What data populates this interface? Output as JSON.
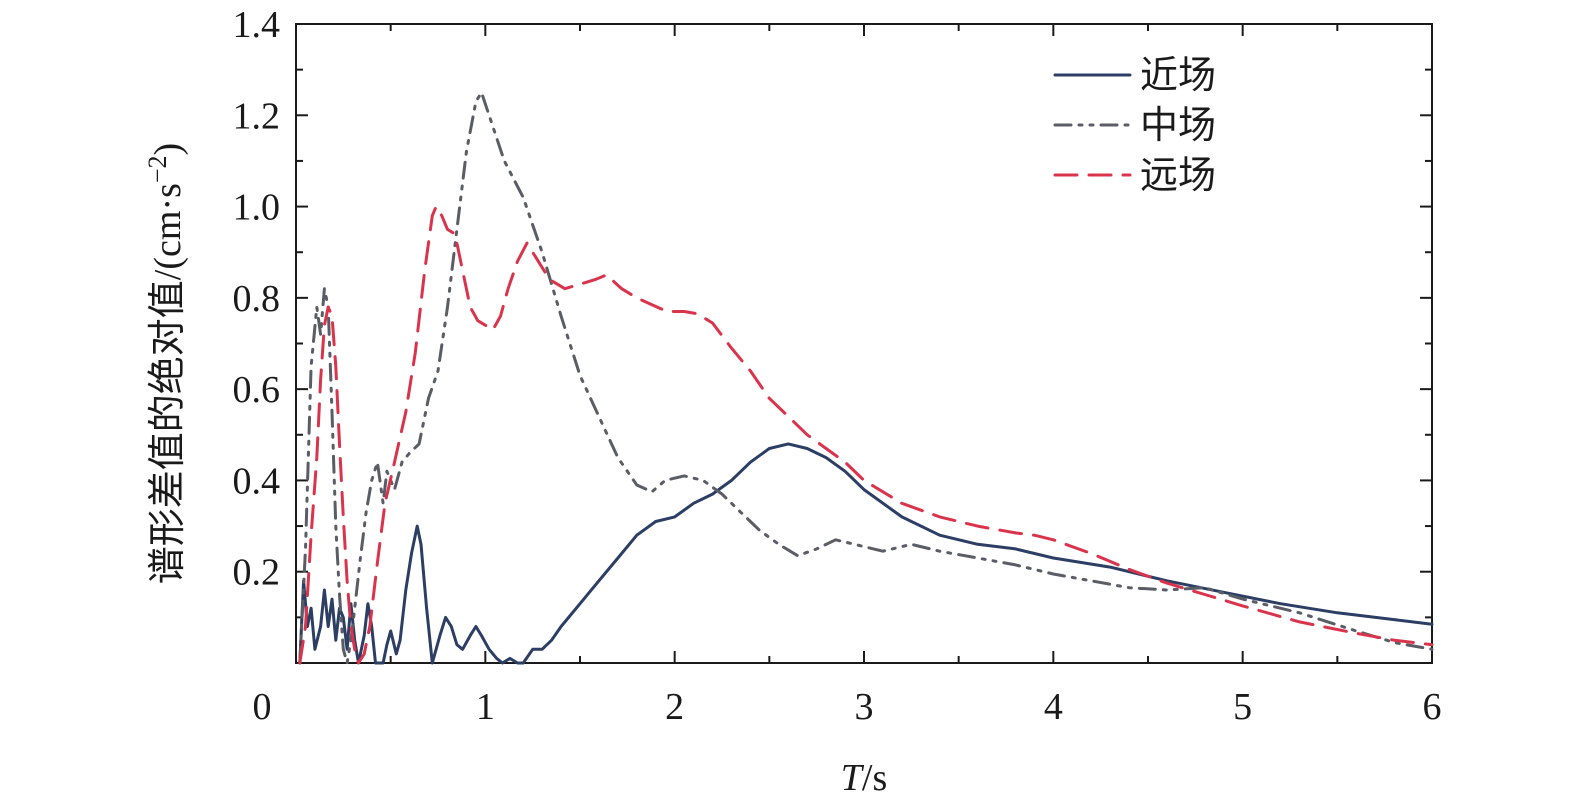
{
  "chart_data": {
    "type": "line",
    "xlabel_italic": "T",
    "xlabel_unit": "/s",
    "ylabel": "谱形差值的绝对值/(cm·s",
    "ylabel_exp": "−2",
    "ylabel_close": ")",
    "xlim": [
      0,
      6
    ],
    "ylim": [
      0,
      1.4
    ],
    "x_ticks": [
      0,
      1,
      2,
      3,
      4,
      5,
      6
    ],
    "x_tick_labels": [
      "0",
      "1",
      "2",
      "3",
      "4",
      "5",
      "6"
    ],
    "y_ticks": [
      0.2,
      0.4,
      0.6,
      0.8,
      1.0,
      1.2,
      1.4
    ],
    "y_tick_labels": [
      "0.2",
      "0.4",
      "0.6",
      "0.8",
      "1.0",
      "1.2",
      "1.4"
    ],
    "legend_position": "top-right",
    "series": [
      {
        "name": "近场",
        "color": "#2c3e63",
        "dash": "solid",
        "points": [
          [
            0.02,
            0.0
          ],
          [
            0.04,
            0.18
          ],
          [
            0.06,
            0.08
          ],
          [
            0.08,
            0.12
          ],
          [
            0.1,
            0.03
          ],
          [
            0.13,
            0.08
          ],
          [
            0.15,
            0.16
          ],
          [
            0.17,
            0.08
          ],
          [
            0.19,
            0.14
          ],
          [
            0.21,
            0.05
          ],
          [
            0.23,
            0.12
          ],
          [
            0.25,
            0.1
          ],
          [
            0.27,
            0.03
          ],
          [
            0.29,
            0.13
          ],
          [
            0.31,
            0.05
          ],
          [
            0.33,
            0.0
          ],
          [
            0.36,
            0.06
          ],
          [
            0.38,
            0.13
          ],
          [
            0.4,
            0.08
          ],
          [
            0.42,
            0.0
          ],
          [
            0.46,
            0.0
          ],
          [
            0.48,
            0.04
          ],
          [
            0.5,
            0.07
          ],
          [
            0.53,
            0.02
          ],
          [
            0.55,
            0.05
          ],
          [
            0.58,
            0.16
          ],
          [
            0.61,
            0.24
          ],
          [
            0.64,
            0.3
          ],
          [
            0.66,
            0.26
          ],
          [
            0.69,
            0.12
          ],
          [
            0.72,
            0.0
          ],
          [
            0.76,
            0.06
          ],
          [
            0.79,
            0.1
          ],
          [
            0.82,
            0.08
          ],
          [
            0.85,
            0.04
          ],
          [
            0.88,
            0.03
          ],
          [
            0.92,
            0.06
          ],
          [
            0.95,
            0.08
          ],
          [
            0.98,
            0.06
          ],
          [
            1.02,
            0.03
          ],
          [
            1.06,
            0.01
          ],
          [
            1.09,
            0.0
          ],
          [
            1.13,
            0.01
          ],
          [
            1.17,
            0.0
          ],
          [
            1.2,
            0.0
          ],
          [
            1.25,
            0.03
          ],
          [
            1.3,
            0.03
          ],
          [
            1.35,
            0.05
          ],
          [
            1.4,
            0.08
          ],
          [
            1.5,
            0.13
          ],
          [
            1.6,
            0.18
          ],
          [
            1.7,
            0.23
          ],
          [
            1.8,
            0.28
          ],
          [
            1.9,
            0.31
          ],
          [
            2.0,
            0.32
          ],
          [
            2.1,
            0.35
          ],
          [
            2.2,
            0.37
          ],
          [
            2.3,
            0.4
          ],
          [
            2.4,
            0.44
          ],
          [
            2.5,
            0.47
          ],
          [
            2.6,
            0.48
          ],
          [
            2.7,
            0.47
          ],
          [
            2.8,
            0.45
          ],
          [
            2.9,
            0.42
          ],
          [
            3.0,
            0.38
          ],
          [
            3.2,
            0.32
          ],
          [
            3.4,
            0.28
          ],
          [
            3.6,
            0.26
          ],
          [
            3.8,
            0.25
          ],
          [
            4.0,
            0.23
          ],
          [
            4.3,
            0.21
          ],
          [
            4.6,
            0.18
          ],
          [
            4.9,
            0.155
          ],
          [
            5.2,
            0.13
          ],
          [
            5.5,
            0.11
          ],
          [
            5.8,
            0.095
          ],
          [
            6.0,
            0.085
          ]
        ]
      },
      {
        "name": "中场",
        "color": "#5a5d66",
        "dash": "dash-dot-dot",
        "points": [
          [
            0.02,
            0.0
          ],
          [
            0.05,
            0.25
          ],
          [
            0.08,
            0.65
          ],
          [
            0.11,
            0.78
          ],
          [
            0.13,
            0.72
          ],
          [
            0.15,
            0.82
          ],
          [
            0.17,
            0.78
          ],
          [
            0.19,
            0.55
          ],
          [
            0.21,
            0.3
          ],
          [
            0.23,
            0.15
          ],
          [
            0.25,
            0.03
          ],
          [
            0.27,
            0.0
          ],
          [
            0.29,
            0.05
          ],
          [
            0.31,
            0.12
          ],
          [
            0.34,
            0.23
          ],
          [
            0.37,
            0.33
          ],
          [
            0.4,
            0.4
          ],
          [
            0.43,
            0.44
          ],
          [
            0.46,
            0.35
          ],
          [
            0.48,
            0.42
          ],
          [
            0.52,
            0.38
          ],
          [
            0.56,
            0.44
          ],
          [
            0.6,
            0.46
          ],
          [
            0.65,
            0.48
          ],
          [
            0.7,
            0.58
          ],
          [
            0.75,
            0.64
          ],
          [
            0.8,
            0.78
          ],
          [
            0.85,
            0.95
          ],
          [
            0.9,
            1.12
          ],
          [
            0.95,
            1.23
          ],
          [
            0.98,
            1.25
          ],
          [
            1.02,
            1.2
          ],
          [
            1.1,
            1.1
          ],
          [
            1.2,
            1.02
          ],
          [
            1.3,
            0.9
          ],
          [
            1.4,
            0.76
          ],
          [
            1.5,
            0.63
          ],
          [
            1.6,
            0.54
          ],
          [
            1.7,
            0.45
          ],
          [
            1.8,
            0.39
          ],
          [
            1.88,
            0.375
          ],
          [
            1.95,
            0.4
          ],
          [
            2.05,
            0.41
          ],
          [
            2.15,
            0.4
          ],
          [
            2.25,
            0.37
          ],
          [
            2.35,
            0.33
          ],
          [
            2.45,
            0.29
          ],
          [
            2.55,
            0.26
          ],
          [
            2.65,
            0.235
          ],
          [
            2.75,
            0.25
          ],
          [
            2.85,
            0.27
          ],
          [
            2.95,
            0.26
          ],
          [
            3.1,
            0.245
          ],
          [
            3.25,
            0.26
          ],
          [
            3.4,
            0.245
          ],
          [
            3.6,
            0.23
          ],
          [
            3.8,
            0.215
          ],
          [
            4.0,
            0.195
          ],
          [
            4.2,
            0.18
          ],
          [
            4.4,
            0.165
          ],
          [
            4.6,
            0.16
          ],
          [
            4.8,
            0.165
          ],
          [
            5.0,
            0.14
          ],
          [
            5.3,
            0.11
          ],
          [
            5.6,
            0.07
          ],
          [
            5.8,
            0.045
          ],
          [
            6.0,
            0.03
          ]
        ]
      },
      {
        "name": "远场",
        "color": "#d9344c",
        "dash": "dash",
        "points": [
          [
            0.02,
            0.0
          ],
          [
            0.05,
            0.08
          ],
          [
            0.08,
            0.28
          ],
          [
            0.11,
            0.45
          ],
          [
            0.13,
            0.62
          ],
          [
            0.15,
            0.74
          ],
          [
            0.17,
            0.78
          ],
          [
            0.19,
            0.76
          ],
          [
            0.21,
            0.65
          ],
          [
            0.23,
            0.48
          ],
          [
            0.25,
            0.32
          ],
          [
            0.27,
            0.18
          ],
          [
            0.29,
            0.08
          ],
          [
            0.31,
            0.03
          ],
          [
            0.33,
            0.0
          ],
          [
            0.36,
            0.02
          ],
          [
            0.39,
            0.08
          ],
          [
            0.43,
            0.22
          ],
          [
            0.47,
            0.35
          ],
          [
            0.52,
            0.44
          ],
          [
            0.58,
            0.55
          ],
          [
            0.63,
            0.68
          ],
          [
            0.68,
            0.86
          ],
          [
            0.72,
            0.98
          ],
          [
            0.74,
            1.0
          ],
          [
            0.77,
            0.98
          ],
          [
            0.8,
            0.95
          ],
          [
            0.84,
            0.94
          ],
          [
            0.88,
            0.86
          ],
          [
            0.92,
            0.78
          ],
          [
            0.96,
            0.75
          ],
          [
            1.0,
            0.74
          ],
          [
            1.04,
            0.73
          ],
          [
            1.08,
            0.76
          ],
          [
            1.12,
            0.82
          ],
          [
            1.17,
            0.88
          ],
          [
            1.22,
            0.92
          ],
          [
            1.28,
            0.88
          ],
          [
            1.34,
            0.84
          ],
          [
            1.42,
            0.82
          ],
          [
            1.5,
            0.83
          ],
          [
            1.58,
            0.84
          ],
          [
            1.64,
            0.85
          ],
          [
            1.72,
            0.82
          ],
          [
            1.8,
            0.8
          ],
          [
            1.88,
            0.785
          ],
          [
            1.96,
            0.77
          ],
          [
            2.05,
            0.77
          ],
          [
            2.12,
            0.765
          ],
          [
            2.2,
            0.745
          ],
          [
            2.3,
            0.69
          ],
          [
            2.4,
            0.64
          ],
          [
            2.5,
            0.58
          ],
          [
            2.6,
            0.54
          ],
          [
            2.7,
            0.5
          ],
          [
            2.8,
            0.47
          ],
          [
            2.9,
            0.44
          ],
          [
            3.0,
            0.4
          ],
          [
            3.2,
            0.35
          ],
          [
            3.4,
            0.32
          ],
          [
            3.6,
            0.3
          ],
          [
            3.8,
            0.285
          ],
          [
            3.9,
            0.28
          ],
          [
            4.0,
            0.27
          ],
          [
            4.2,
            0.24
          ],
          [
            4.4,
            0.205
          ],
          [
            4.6,
            0.175
          ],
          [
            4.8,
            0.15
          ],
          [
            5.0,
            0.125
          ],
          [
            5.3,
            0.09
          ],
          [
            5.6,
            0.065
          ],
          [
            5.8,
            0.05
          ],
          [
            6.0,
            0.04
          ]
        ]
      }
    ]
  }
}
